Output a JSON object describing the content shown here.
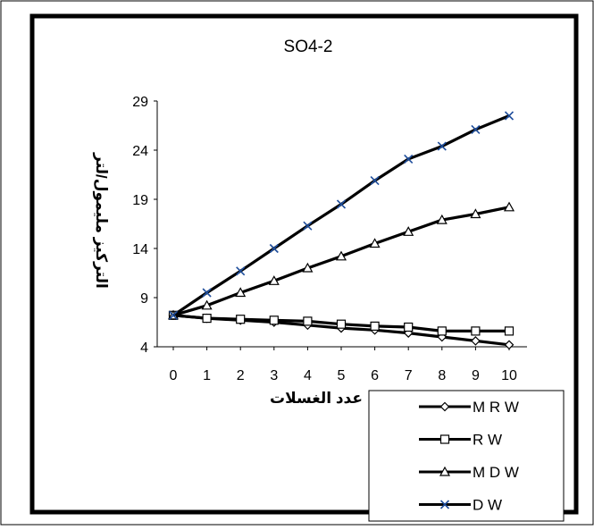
{
  "chart_data": {
    "type": "line",
    "title": "SO4-2",
    "xlabel": "عدد الغسلات",
    "ylabel": "التركيز مليمول/لتر",
    "x": [
      0,
      1,
      2,
      3,
      4,
      5,
      6,
      7,
      8,
      9,
      10
    ],
    "xticks": [
      "0",
      "1",
      "2",
      "3",
      "4",
      "5",
      "6",
      "7",
      "8",
      "9",
      "10"
    ],
    "yticks": [
      "4",
      "9",
      "14",
      "19",
      "24",
      "29"
    ],
    "ylim": [
      4,
      29
    ],
    "xlim": [
      0,
      10
    ],
    "grid": false,
    "legend_position": "bottom-right",
    "series": [
      {
        "name": "M R W",
        "marker": "diamond",
        "values": [
          7.2,
          6.9,
          6.7,
          6.5,
          6.2,
          5.9,
          5.7,
          5.4,
          5.0,
          4.6,
          4.2
        ]
      },
      {
        "name": "R W",
        "marker": "square",
        "values": [
          7.2,
          6.9,
          6.8,
          6.7,
          6.6,
          6.3,
          6.1,
          6.0,
          5.6,
          5.6,
          5.6
        ]
      },
      {
        "name": "M D W",
        "marker": "triangle",
        "values": [
          7.2,
          8.2,
          9.5,
          10.7,
          12.0,
          13.2,
          14.5,
          15.7,
          16.9,
          17.5,
          18.2
        ]
      },
      {
        "name": "D W",
        "marker": "x",
        "values": [
          7.2,
          9.5,
          11.7,
          14.0,
          16.3,
          18.5,
          20.9,
          23.1,
          24.4,
          26.1,
          27.5
        ]
      }
    ]
  }
}
